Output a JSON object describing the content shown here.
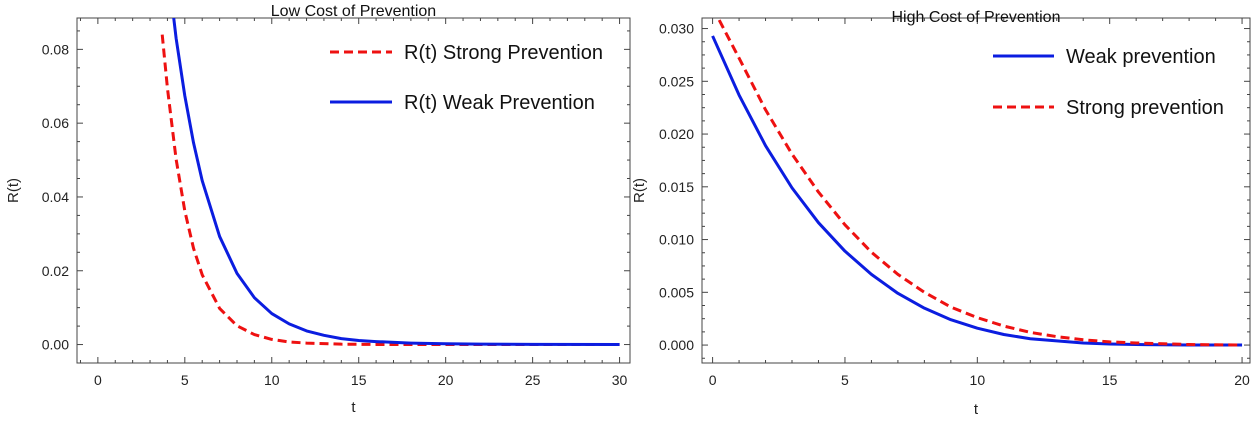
{
  "chart_data": [
    {
      "type": "line",
      "title": "Low Cost of Prevention",
      "xlabel": "t",
      "ylabel": "R(t)",
      "xlim": [
        -1.2,
        30.6
      ],
      "ylim": [
        -0.005,
        0.0885
      ],
      "x_ticks": [
        0,
        5,
        10,
        15,
        20,
        25,
        30
      ],
      "x_tick_labels": [
        "0",
        "5",
        "10",
        "15",
        "20",
        "25",
        "30"
      ],
      "y_ticks": [
        0,
        0.02,
        0.04,
        0.06,
        0.08
      ],
      "y_tick_labels": [
        "0.00",
        "0.02",
        "0.04",
        "0.06",
        "0.08"
      ],
      "legend_position": "top-right",
      "series": [
        {
          "name": "R(t) Strong Prevention",
          "color": "#ee1111",
          "style": "dashed",
          "x": [
            3.7,
            4,
            4.5,
            5,
            5.5,
            6,
            7,
            8,
            9,
            10,
            11,
            12,
            14,
            16,
            18,
            20,
            25,
            30
          ],
          "y": [
            0.084,
            0.0695,
            0.0502,
            0.0362,
            0.0261,
            0.0189,
            0.0098,
            0.0051,
            0.0027,
            0.0014,
            0.0007,
            0.0004,
            0.0001,
            3e-05,
            1e-05,
            0,
            0,
            0
          ]
        },
        {
          "name": "R(t) Weak Prevention",
          "color": "#0b1de0",
          "style": "solid",
          "x": [
            4.35,
            4.5,
            5,
            5.5,
            6,
            7,
            8,
            9,
            10,
            11,
            12,
            13,
            14,
            15,
            16,
            18,
            20,
            22,
            25,
            30
          ],
          "y": [
            0.089,
            0.083,
            0.0674,
            0.0547,
            0.0444,
            0.0293,
            0.0193,
            0.0127,
            0.0084,
            0.0056,
            0.0037,
            0.0025,
            0.0016,
            0.0011,
            0.0008,
            0.0004,
            0.0002,
            0.0001,
            4e-05,
            0
          ]
        }
      ]
    },
    {
      "type": "line",
      "title": "High Cost of Prevention",
      "xlabel": "t",
      "ylabel": "R(t)",
      "xlim": [
        -0.4,
        20.3
      ],
      "ylim": [
        -0.0017,
        0.031
      ],
      "x_ticks": [
        0,
        5,
        10,
        15,
        20
      ],
      "x_tick_labels": [
        "0",
        "5",
        "10",
        "15",
        "20"
      ],
      "y_ticks": [
        0,
        0.005,
        0.01,
        0.015,
        0.02,
        0.025,
        0.03
      ],
      "y_tick_labels": [
        "0.000",
        "0.005",
        "0.010",
        "0.015",
        "0.020",
        "0.025",
        "0.030"
      ],
      "legend_position": "top-right",
      "series": [
        {
          "name": "Weak prevention",
          "color": "#0b1de0",
          "style": "solid",
          "x": [
            0,
            1,
            2,
            3,
            4,
            5,
            6,
            7,
            8,
            9,
            10,
            11,
            12,
            13,
            14,
            15,
            16,
            18,
            20
          ],
          "y": [
            0.0293,
            0.0237,
            0.0189,
            0.0149,
            0.0116,
            0.0089,
            0.0067,
            0.0049,
            0.0035,
            0.0024,
            0.0016,
            0.001,
            0.0006,
            0.0004,
            0.0002,
            0.0001,
            5e-05,
            1e-05,
            0
          ]
        },
        {
          "name": "Strong prevention",
          "color": "#ee1111",
          "style": "dashed",
          "x": [
            0.25,
            1,
            2,
            3,
            4,
            5,
            6,
            7,
            8,
            9,
            10,
            11,
            12,
            13,
            14,
            15,
            16,
            18,
            20
          ],
          "y": [
            0.0308,
            0.0272,
            0.0223,
            0.0181,
            0.0145,
            0.0114,
            0.0088,
            0.0067,
            0.005,
            0.0036,
            0.0026,
            0.0018,
            0.0012,
            0.0008,
            0.0005,
            0.0003,
            0.0002,
            5e-05,
            0
          ]
        }
      ]
    }
  ]
}
